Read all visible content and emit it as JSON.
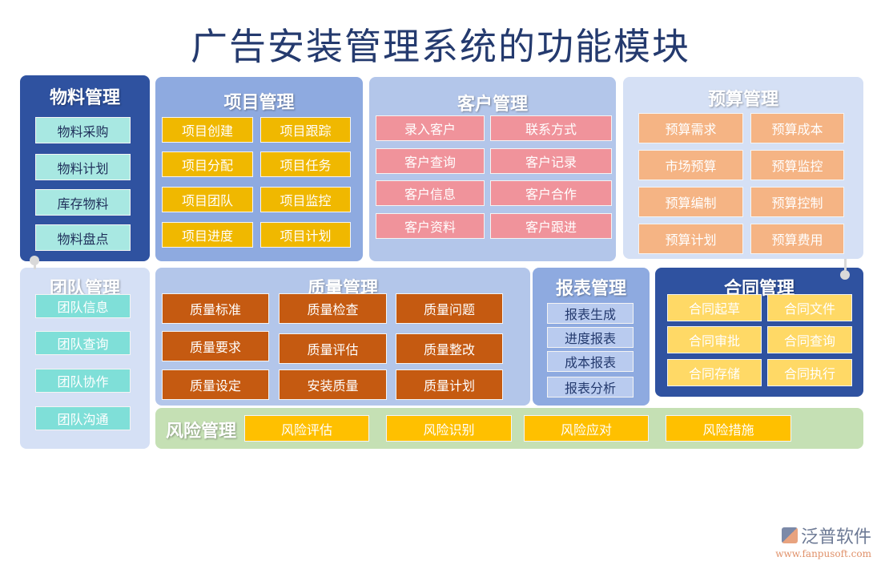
{
  "title": "广告安装管理系统的功能模块",
  "colors": {
    "dark_blue": "#2f52a0",
    "mid_blue": "#8eaae0",
    "light_blue": "#b3c6ea",
    "pale_blue": "#d5e0f5",
    "green": "#c5e0b4"
  },
  "modules": {
    "material": {
      "title": "物料管理",
      "items": [
        "物料采购",
        "物料计划",
        "库存物料",
        "物料盘点"
      ]
    },
    "project": {
      "title": "项目管理",
      "items": [
        "项目创建",
        "项目跟踪",
        "项目分配",
        "项目任务",
        "项目团队",
        "项目监控",
        "项目进度",
        "项目计划"
      ]
    },
    "customer": {
      "title": "客户管理",
      "items": [
        "录入客户",
        "联系方式",
        "客户查询",
        "客户记录",
        "客户信息",
        "客户合作",
        "客户资料",
        "客户跟进"
      ]
    },
    "budget": {
      "title": "预算管理",
      "items": [
        "预算需求",
        "预算成本",
        "市场预算",
        "预算监控",
        "预算编制",
        "预算控制",
        "预算计划",
        "预算费用"
      ]
    },
    "team": {
      "title": "团队管理",
      "items": [
        "团队信息",
        "团队查询",
        "团队协作",
        "团队沟通"
      ]
    },
    "quality": {
      "title": "质量管理",
      "items": [
        "质量标准",
        "质量检查",
        "质量问题",
        "质量要求",
        "质量评估",
        "质量整改",
        "质量设定",
        "安装质量",
        "质量计划"
      ]
    },
    "report": {
      "title": "报表管理",
      "items": [
        "报表生成",
        "进度报表",
        "成本报表",
        "报表分析"
      ]
    },
    "contract": {
      "title": "合同管理",
      "items": [
        "合同起草",
        "合同文件",
        "合同审批",
        "合同查询",
        "合同存储",
        "合同执行"
      ]
    },
    "risk": {
      "title": "风险管理",
      "items": [
        "风险评估",
        "风险识别",
        "风险应对",
        "风险措施"
      ]
    }
  },
  "logo": {
    "name": "泛普软件",
    "url": "www.fanpusoft.com"
  }
}
